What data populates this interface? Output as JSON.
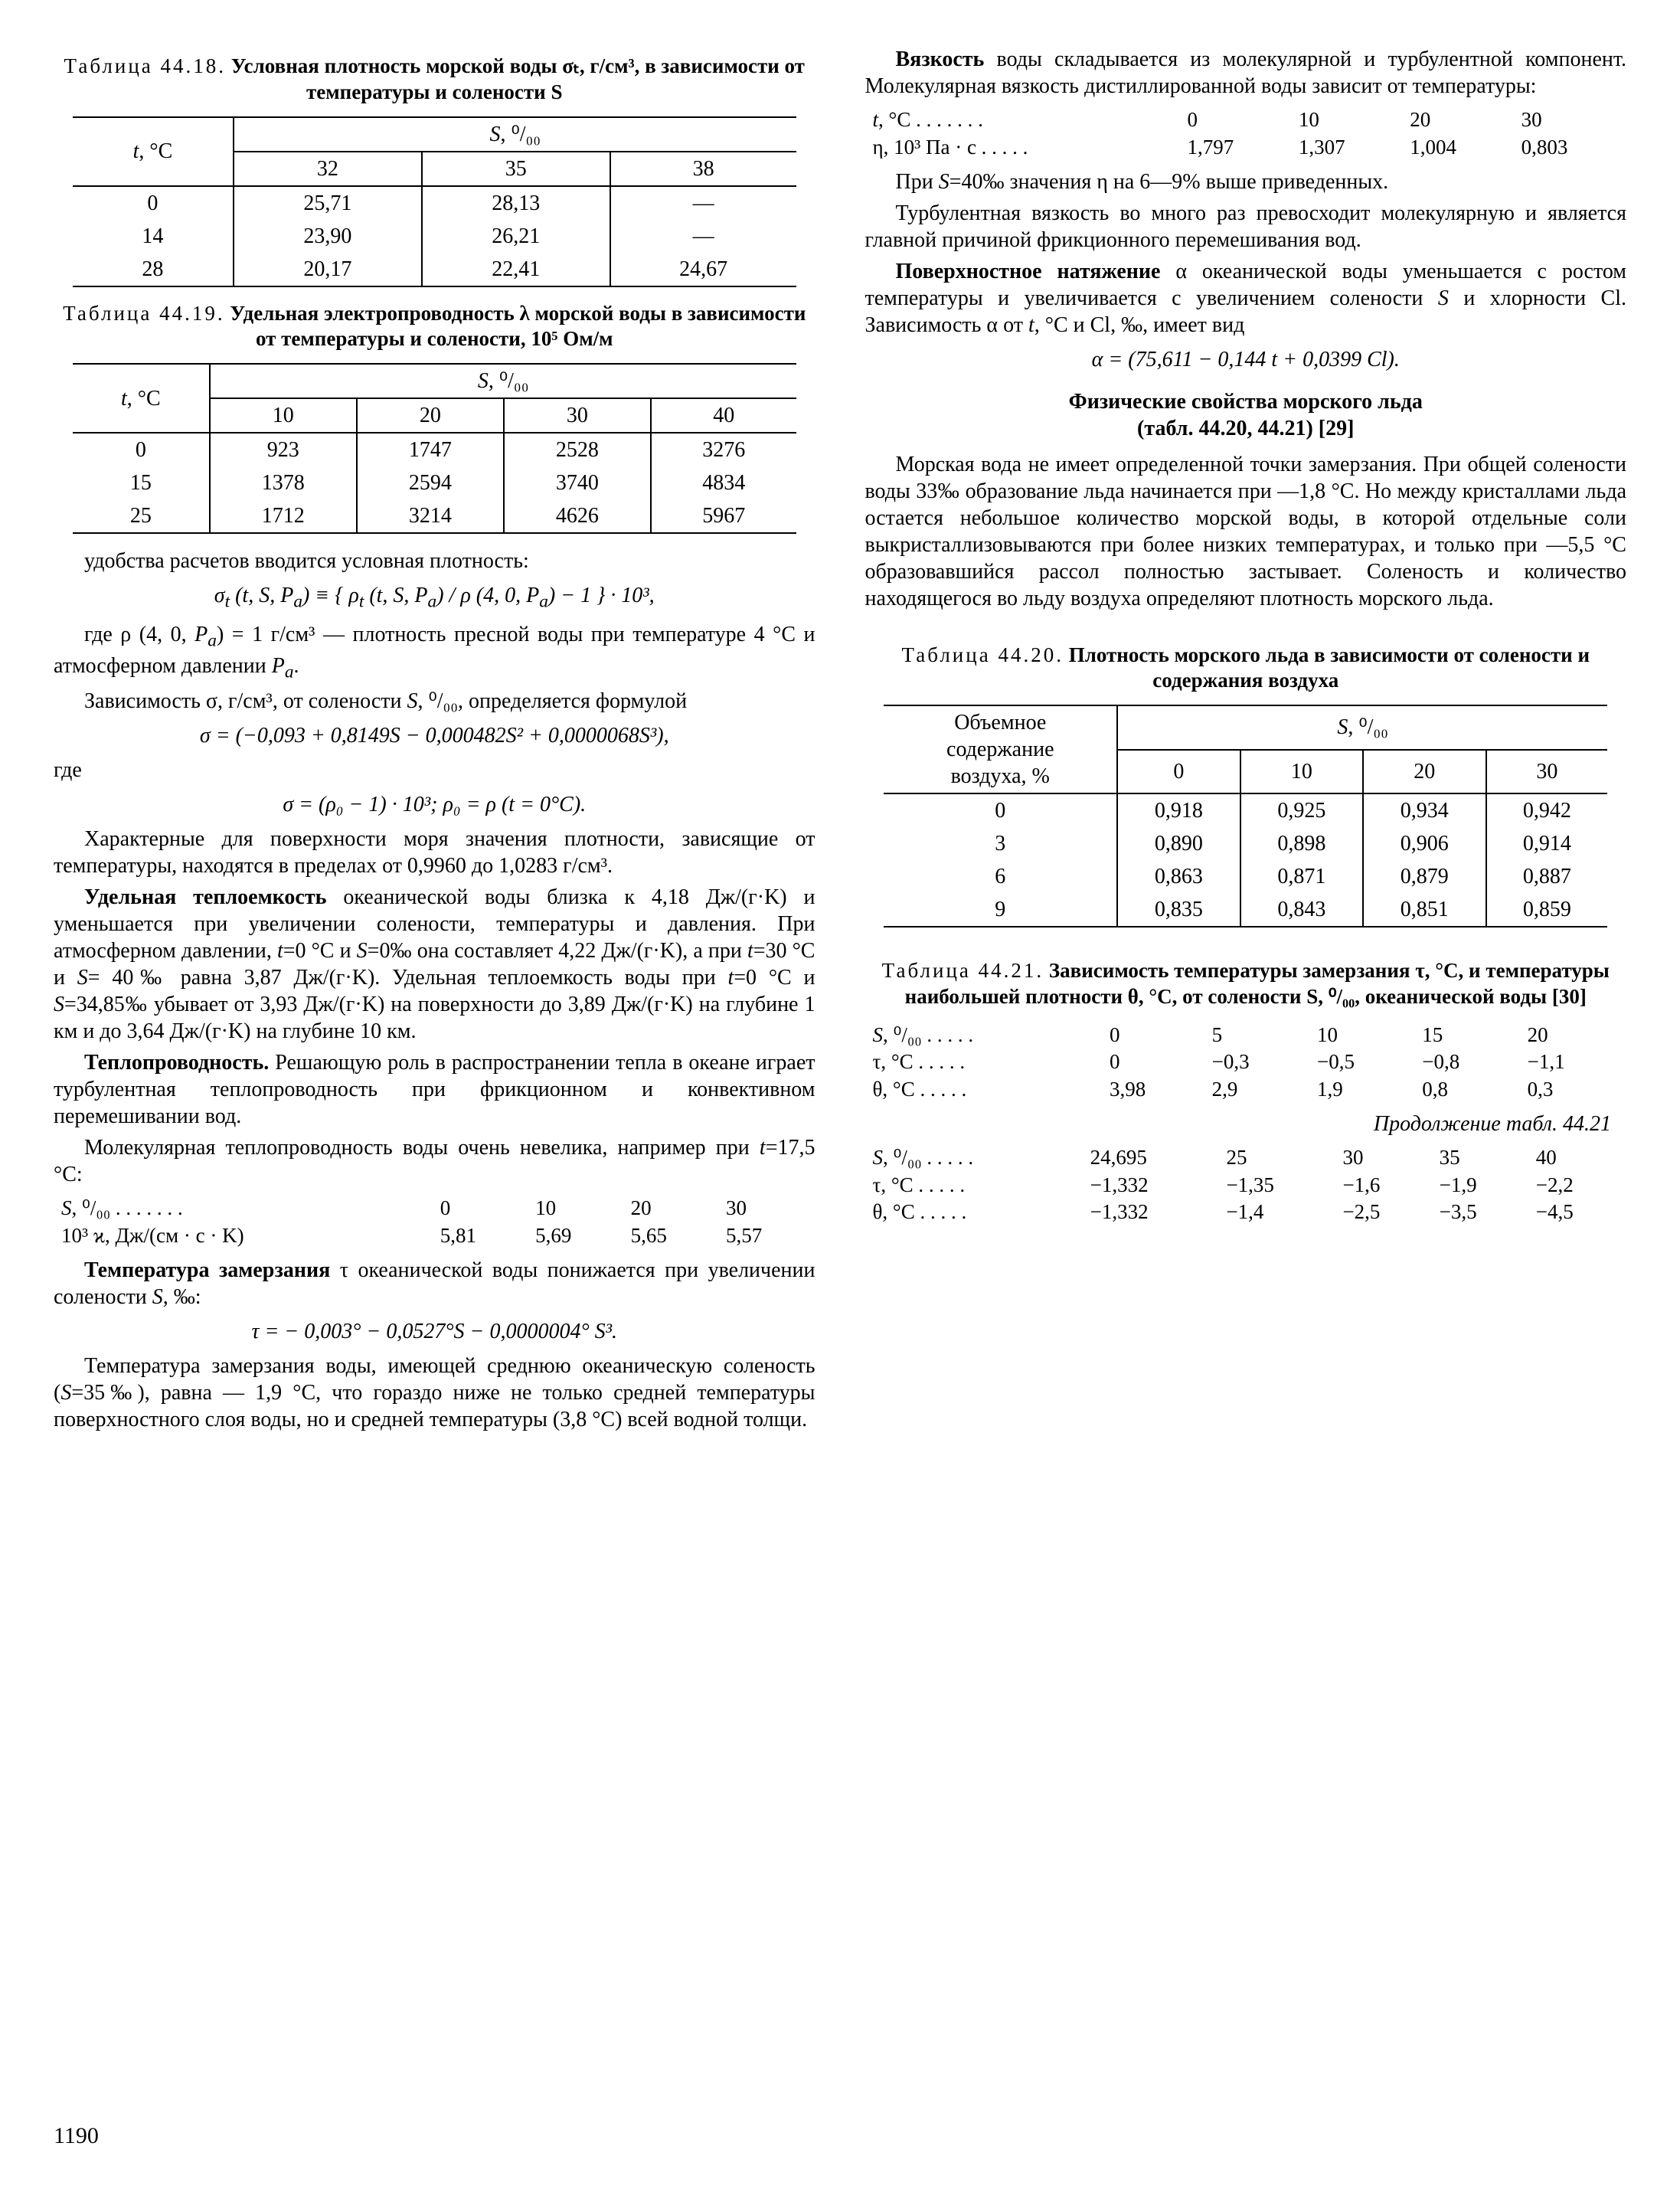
{
  "left": {
    "table18": {
      "caption_lead": "Таблица 44.18.",
      "caption_rest": "Условная плотность морской воды σₜ, г/см³, в зависимости от температуры и солености S",
      "row_header_html": "<span class='it'>t</span>, °C",
      "col_group_html": "<span class='it'>S</span>, ⁰/₀₀",
      "cols": [
        "32",
        "35",
        "38"
      ],
      "rows": [
        {
          "t": "0",
          "v": [
            "25,71",
            "28,13",
            "—"
          ]
        },
        {
          "t": "14",
          "v": [
            "23,90",
            "26,21",
            "—"
          ]
        },
        {
          "t": "28",
          "v": [
            "20,17",
            "22,41",
            "24,67"
          ]
        }
      ]
    },
    "table19": {
      "caption_lead": "Таблица 44.19.",
      "caption_rest": "Удельная электропроводность λ морской воды в зависимости от температуры и солености, 10⁵ Ом/м",
      "row_header_html": "<span class='it'>t</span>, °C",
      "col_group_html": "<span class='it'>S</span>, ⁰/₀₀",
      "cols": [
        "10",
        "20",
        "30",
        "40"
      ],
      "rows": [
        {
          "t": "0",
          "v": [
            "923",
            "1747",
            "2528",
            "3276"
          ]
        },
        {
          "t": "15",
          "v": [
            "1378",
            "2594",
            "3740",
            "4834"
          ]
        },
        {
          "t": "25",
          "v": [
            "1712",
            "3214",
            "4626",
            "5967"
          ]
        }
      ]
    },
    "p1": "удобства расчетов вводится условная плотность:",
    "formula1_html": "σ<sub>t</sub> (t, S, P<sub>a</sub>) ≡ { ρ<sub>t</sub> (t, S, P<sub>a</sub>) / ρ (4, 0, P<sub>a</sub>) − 1 } · 10³,",
    "p2_html": "где ρ (4, 0, <span class='it'>P<sub>a</sub></span>) = 1 г/см³ — плотность пресной воды при температуре 4 °C и атмосферном давлении <span class='it'>P<sub>a</sub></span>.",
    "p3_html": "Зависимость σ, г/см³, от солености <span class='it'>S</span>, ⁰/₀₀, определяется формулой",
    "formula2_html": "σ = (−0,093 + 0,8149S − 0,000482S² + 0,0000068S³),",
    "p4": "где",
    "formula3_html": "σ = (ρ₀ − 1) · 10³;  ρ₀ = ρ (t = 0°C).",
    "p5_html": "Характерные для поверхности моря значения плотности, зависящие от температуры, находятся в пределах от 0,9960 до 1,0283 г/см³.",
    "p6_html": "<span class='bold'>Удельная теплоемкость</span> океанической воды близка к 4,18 Дж/(г·K) и уменьшается при увеличении солености, температуры и давления. При атмосферном давлении, <span class='it'>t</span>=0 °C и <span class='it'>S</span>=0‰ она составляет 4,22 Дж/(г·K), а при <span class='it'>t</span>=30 °C и <span class='it'>S</span>= 40‰ равна 3,87 Дж/(г·K). Удельная теплоемкость воды при <span class='it'>t</span>=0 °C и <span class='it'>S</span>=34,85‰ убывает от 3,93 Дж/(г·K) на поверхности до 3,89 Дж/(г·K) на глубине 1 км и до 3,64 Дж/(г·K) на глубине 10 км.",
    "p7_html": "<span class='bold'>Теплопроводность.</span> Решающую роль в распространении тепла в океане играет турбулентная теплопроводность при фрикционном и конвективном перемешивании вод.",
    "p8_html": "Молекулярная теплопроводность воды очень невелика, например при <span class='it'>t</span>=17,5 °C:",
    "thermalcond": {
      "row1_label_html": "<span class='it'>S</span>, ⁰/₀₀ . . . . . . .",
      "row2_label_html": "10³ ϰ, Дж/(см · с · K)",
      "cols": [
        "0",
        "10",
        "20",
        "30"
      ],
      "vals": [
        "5,81",
        "5,69",
        "5,65",
        "5,57"
      ]
    },
    "p9_html": "<span class='bold'>Температура замерзания</span> τ океанической воды понижается при увеличении солености <span class='it'>S</span>, ‰:",
    "formula4_html": "τ = − 0,003° − 0,0527°S − 0,0000004° S³.",
    "p10_html": "Температура замерзания воды, имеющей среднюю океаническую соленость (<span class='it'>S</span>=35‰), равна — 1,9 °C, что гораздо ниже не только средней температуры поверхностного слоя воды, но и средней температуры (3,8 °C) всей водной толщи."
  },
  "right": {
    "p1_html": "<span class='bold'>Вязкость</span> воды складывается из молекулярной и турбулентной компонент. Молекулярная вязкость дистиллированной воды зависит от температуры:",
    "viscosity": {
      "row1_label_html": "<span class='it'>t</span>, °C . . . . . . .",
      "row2_label_html": "η, 10³ Па · с . . . . .",
      "cols": [
        "0",
        "10",
        "20",
        "30"
      ],
      "vals": [
        "1,797",
        "1,307",
        "1,004",
        "0,803"
      ]
    },
    "p2_html": "При <span class='it'>S</span>=40‰ значения η на 6—9% выше приведенных.",
    "p3_html": "Турбулентная вязкость во много раз превосходит молекулярную и является главной причиной фрикционного перемешивания вод.",
    "p4_html": "<span class='bold'>Поверхностное натяжение</span> α океанической воды уменьшается с ростом температуры и увеличивается с увеличением солености <span class='it'>S</span> и хлорности Cl. Зависимость α от <span class='it'>t</span>, °C и Cl, ‰, имеет вид",
    "formula5_html": "α = (75,611 − 0,144 t + 0,0399 Cl).",
    "section_title_html": "Физические свойства морского льда<br>(табл. 44.20, 44.21) [29]",
    "p5_html": "Морская вода не имеет определенной точки замерзания. При общей солености воды 33‰ образование льда начинается при —1,8 °C. Но между кристаллами льда остается небольшое количество морской воды, в которой отдельные соли выкристаллизовываются при более низких температурах, и только при —5,5 °C образовавшийся рассол полностью застывает. Соленость и количество находящегося во льду воздуха определяют плотность морского льда.",
    "table20": {
      "caption_lead": "Таблица 44.20.",
      "caption_rest": "Плотность морского льда в зависимости от солености и содержания воздуха",
      "row_header_html": "Объемное<br>содержание<br>воздуха, %",
      "col_group_html": "<span class='it'>S</span>, ⁰/₀₀",
      "cols": [
        "0",
        "10",
        "20",
        "30"
      ],
      "rows": [
        {
          "t": "0",
          "v": [
            "0,918",
            "0,925",
            "0,934",
            "0,942"
          ]
        },
        {
          "t": "3",
          "v": [
            "0,890",
            "0,898",
            "0,906",
            "0,914"
          ]
        },
        {
          "t": "6",
          "v": [
            "0,863",
            "0,871",
            "0,879",
            "0,887"
          ]
        },
        {
          "t": "9",
          "v": [
            "0,835",
            "0,843",
            "0,851",
            "0,859"
          ]
        }
      ]
    },
    "table21": {
      "caption_lead": "Таблица 44.21.",
      "caption_rest": "Зависимость температуры замерзания τ, °C, и температуры наибольшей плотности θ, °C, от солености S, ⁰/₀₀, океанической воды [30]",
      "part1": {
        "s_label_html": "<span class='it'>S</span>, ⁰/₀₀ . . . . .",
        "tau_label_html": "τ, °C . . . . .",
        "theta_label_html": "θ, °C . . . . .",
        "cols": [
          "0",
          "5",
          "10",
          "15",
          "20"
        ],
        "tau": [
          "0",
          "−0,3",
          "−0,5",
          "−0,8",
          "−1,1"
        ],
        "theta": [
          "3,98",
          "2,9",
          "1,9",
          "0,8",
          "0,3"
        ]
      },
      "cont_label": "Продолжение табл. 44.21",
      "part2": {
        "s_label_html": "<span class='it'>S</span>, ⁰/₀₀ . . . . .",
        "tau_label_html": "τ, °C . . . . .",
        "theta_label_html": "θ, °C . . . . .",
        "cols": [
          "24,695",
          "25",
          "30",
          "35",
          "40"
        ],
        "tau": [
          "−1,332",
          "−1,35",
          "−1,6",
          "−1,9",
          "−2,2"
        ],
        "theta": [
          "−1,332",
          "−1,4",
          "−2,5",
          "−3,5",
          "−4,5"
        ]
      }
    }
  },
  "pageno": "1190"
}
